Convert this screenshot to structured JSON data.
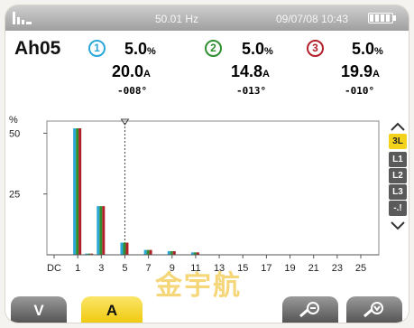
{
  "status": {
    "frequency": "50.01 Hz",
    "datetime": "09/07/08 10:43",
    "battery_icon": "battery-full-icon",
    "signal_icon": "signal-bars-icon"
  },
  "header": {
    "harmonic_label": "Ah05",
    "phases": [
      {
        "num": "1",
        "color": "#29a7d9",
        "pct": "5.0",
        "pct_unit": "%",
        "amps": "20.0",
        "amps_unit": "A",
        "angle": "-008°"
      },
      {
        "num": "2",
        "color": "#2f8f2f",
        "pct": "5.0",
        "pct_unit": "%",
        "amps": "14.8",
        "amps_unit": "A",
        "angle": "-013°"
      },
      {
        "num": "3",
        "color": "#b3202a",
        "pct": "5.0",
        "pct_unit": "%",
        "amps": "19.9",
        "amps_unit": "A",
        "angle": "-010°"
      }
    ]
  },
  "side_menu": {
    "items": [
      "3L",
      "L1",
      "L2",
      "L3",
      "-.!"
    ],
    "active": "3L"
  },
  "tabs": [
    {
      "label": "V",
      "active": false
    },
    {
      "label": "A",
      "active": true
    },
    {
      "label": "",
      "icon": "zoom-out-icon",
      "active": false
    },
    {
      "label": "",
      "icon": "save-icon",
      "active": false
    }
  ],
  "watermark": "金宇航",
  "chart_data": {
    "type": "bar",
    "ylabel": "%",
    "yticks": [
      25,
      50
    ],
    "ylim": [
      0,
      52
    ],
    "xticks": [
      "DC",
      "1",
      "3",
      "5",
      "7",
      "9",
      "11",
      "13",
      "15",
      "17",
      "19",
      "21",
      "23",
      "25"
    ],
    "cursor_at": "5",
    "series_colors": [
      "#29a7d9",
      "#2f8f2f",
      "#b3202a"
    ],
    "categories": [
      "1",
      "2",
      "3",
      "4",
      "5",
      "6",
      "7",
      "8",
      "9",
      "10",
      "11"
    ],
    "series": [
      {
        "values": [
          52,
          0.5,
          20,
          0,
          5,
          0,
          2,
          0,
          1.5,
          0,
          1
        ]
      },
      {
        "values": [
          52,
          0.5,
          20,
          0,
          5,
          0,
          2,
          0,
          1.5,
          0,
          1
        ]
      },
      {
        "values": [
          52,
          0.5,
          20,
          0,
          5,
          0,
          2,
          0,
          1.5,
          0,
          1
        ]
      }
    ]
  }
}
